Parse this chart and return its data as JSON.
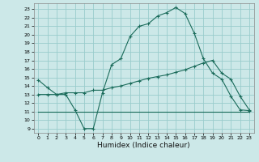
{
  "xlabel": "Humidex (Indice chaleur)",
  "bg_color": "#cce8e8",
  "grid_color": "#99cccc",
  "line_color": "#1a6b5a",
  "xlim": [
    -0.5,
    23.5
  ],
  "ylim": [
    8.5,
    23.7
  ],
  "yticks": [
    9,
    10,
    11,
    12,
    13,
    14,
    15,
    16,
    17,
    18,
    19,
    20,
    21,
    22,
    23
  ],
  "xticks": [
    0,
    1,
    2,
    3,
    4,
    5,
    6,
    7,
    8,
    9,
    10,
    11,
    12,
    13,
    14,
    15,
    16,
    17,
    18,
    19,
    20,
    21,
    22,
    23
  ],
  "curve1_x": [
    0,
    1,
    2,
    3,
    4,
    5,
    6,
    7,
    8,
    9,
    10,
    11,
    12,
    13,
    14,
    15,
    16,
    17,
    18,
    19,
    20,
    21,
    22,
    23
  ],
  "curve1_y": [
    14.7,
    13.8,
    13.0,
    13.0,
    11.2,
    9.0,
    9.0,
    13.2,
    16.5,
    17.2,
    19.8,
    21.0,
    21.3,
    22.2,
    22.6,
    23.2,
    22.5,
    20.2,
    17.2,
    15.5,
    14.8,
    12.8,
    11.2,
    11.1
  ],
  "curve2_x": [
    0,
    1,
    2,
    3,
    4,
    5,
    6,
    7,
    8,
    9,
    10,
    11,
    12,
    13,
    14,
    15,
    16,
    17,
    18,
    19,
    20,
    21,
    22,
    23
  ],
  "curve2_y": [
    13.0,
    13.0,
    13.0,
    13.2,
    13.2,
    13.2,
    13.5,
    13.5,
    13.8,
    14.0,
    14.3,
    14.6,
    14.9,
    15.1,
    15.3,
    15.6,
    15.9,
    16.3,
    16.7,
    17.0,
    15.5,
    14.8,
    12.8,
    11.2
  ],
  "curve3_x": [
    0,
    4,
    10,
    19,
    23
  ],
  "curve3_y": [
    11.0,
    11.0,
    11.0,
    11.0,
    11.0
  ],
  "xlabel_fontsize": 6.5
}
